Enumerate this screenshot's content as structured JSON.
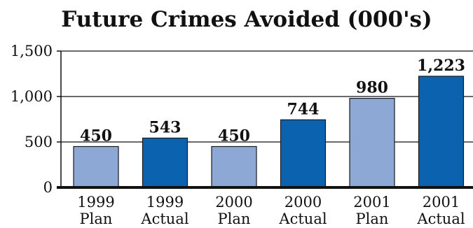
{
  "chart_data": {
    "type": "bar",
    "title": "Future Crimes Avoided (000's)",
    "xlabel": "",
    "ylabel": "",
    "ylim": [
      0,
      1500
    ],
    "yticks": [
      0,
      500,
      1000,
      1500
    ],
    "ytick_labels": [
      "0",
      "500",
      "1,000",
      "1,500"
    ],
    "grid": true,
    "legend": "none",
    "categories": [
      [
        "1999",
        "Plan"
      ],
      [
        "1999",
        "Actual"
      ],
      [
        "2000",
        "Plan"
      ],
      [
        "2000",
        "Actual"
      ],
      [
        "2001",
        "Plan"
      ],
      [
        "2001",
        "Actual"
      ]
    ],
    "values": [
      450,
      543,
      450,
      744,
      980,
      1223
    ],
    "value_labels": [
      "450",
      "543",
      "450",
      "744",
      "980",
      "1,223"
    ],
    "bar_kinds": [
      "plan",
      "actual",
      "plan",
      "actual",
      "plan",
      "actual"
    ],
    "colors": {
      "plan": "#8ea8d6",
      "actual": "#0b62ae",
      "grid": "#111111",
      "axis": "#111111"
    }
  }
}
